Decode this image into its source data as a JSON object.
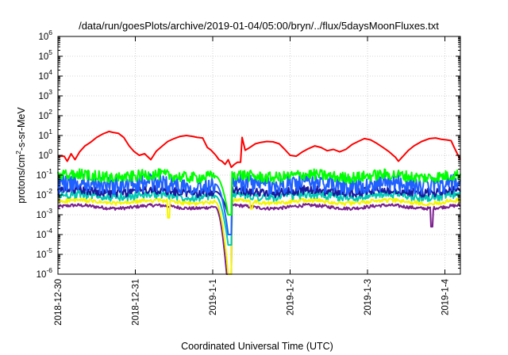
{
  "chart_data": {
    "type": "line",
    "title": "/data/run/goesPlots/archive/2019-01-04/05:00/bryn/../flux/5daysMoonFluxes.txt",
    "xlabel": "Coordinated Universal Time (UTC)",
    "ylabel": "protons/cm2-s-sr-MeV",
    "y_scale": "log",
    "ylim_exponents": [
      -6,
      6
    ],
    "xlim_days": [
      0,
      5.2
    ],
    "x_ticks": [
      {
        "day": 0,
        "label": "2018-12-30"
      },
      {
        "day": 1,
        "label": "2018-12-31"
      },
      {
        "day": 2,
        "label": "2019-1-1"
      },
      {
        "day": 3,
        "label": "2019-1-2"
      },
      {
        "day": 4,
        "label": "2019-1-3"
      },
      {
        "day": 5,
        "label": "2019-1-4"
      }
    ],
    "grid": true,
    "legend": "none",
    "series": [
      {
        "color": "#7a1f8c",
        "level": 0.0025,
        "amp": 0.08,
        "dip": 1e-07,
        "spikes": [
          [
            4.83,
            0.00025
          ]
        ]
      },
      {
        "color": "#f5f500",
        "level": 0.0045,
        "amp": 0.1,
        "dip": 1e-06,
        "spikes": [
          [
            1.43,
            0.0007
          ],
          [
            2.5,
            0.002
          ]
        ]
      },
      {
        "color": "#00c8b4",
        "level": 0.009,
        "amp": 0.2,
        "dip": 3e-05,
        "spikes": []
      },
      {
        "color": "#1a1a9e",
        "level": 0.015,
        "amp": 0.22,
        "dip": 0.001,
        "spikes": []
      },
      {
        "color": "#2060ff",
        "level": 0.035,
        "amp": 0.45,
        "dip": 0.0001,
        "spikes": []
      },
      {
        "color": "#00ff00",
        "level": 0.09,
        "amp": 0.28,
        "dip": 0.001,
        "spikes": []
      },
      {
        "color": "#ff0000",
        "kind": "moon",
        "points": [
          [
            0.0,
            0.9
          ],
          [
            0.08,
            0.9
          ],
          [
            0.12,
            0.5
          ],
          [
            0.17,
            1.2
          ],
          [
            0.22,
            0.6
          ],
          [
            0.28,
            1.5
          ],
          [
            0.35,
            3.0
          ],
          [
            0.42,
            4.5
          ],
          [
            0.5,
            8.0
          ],
          [
            0.58,
            12
          ],
          [
            0.66,
            16
          ],
          [
            0.72,
            14
          ],
          [
            0.78,
            13
          ],
          [
            0.85,
            8
          ],
          [
            0.92,
            3
          ],
          [
            0.98,
            1.6
          ],
          [
            1.05,
            1.0
          ],
          [
            1.12,
            1.2
          ],
          [
            1.2,
            0.6
          ],
          [
            1.27,
            1.6
          ],
          [
            1.35,
            3
          ],
          [
            1.42,
            5
          ],
          [
            1.5,
            7
          ],
          [
            1.58,
            9
          ],
          [
            1.66,
            10
          ],
          [
            1.74,
            9
          ],
          [
            1.8,
            8
          ],
          [
            1.87,
            7.5
          ],
          [
            1.93,
            2.5
          ],
          [
            1.98,
            1.8
          ],
          [
            2.04,
            1.0
          ],
          [
            2.08,
            0.6
          ],
          [
            2.12,
            0.5
          ],
          [
            2.16,
            0.35
          ],
          [
            2.2,
            0.6
          ],
          [
            2.24,
            0.25
          ],
          [
            2.28,
            0.35
          ],
          [
            2.32,
            0.45
          ],
          [
            2.36,
            0.45
          ],
          [
            2.38,
            8
          ],
          [
            2.42,
            1.8
          ],
          [
            2.48,
            2.5
          ],
          [
            2.55,
            3.8
          ],
          [
            2.62,
            4.5
          ],
          [
            2.7,
            5
          ],
          [
            2.78,
            4.8
          ],
          [
            2.86,
            3.8
          ],
          [
            2.93,
            2.0
          ],
          [
            3.0,
            1.0
          ],
          [
            3.08,
            0.9
          ],
          [
            3.16,
            1.5
          ],
          [
            3.24,
            2.2
          ],
          [
            3.32,
            3.0
          ],
          [
            3.4,
            2.5
          ],
          [
            3.48,
            1.7
          ],
          [
            3.56,
            2.0
          ],
          [
            3.64,
            1.5
          ],
          [
            3.72,
            2.0
          ],
          [
            3.8,
            3.5
          ],
          [
            3.88,
            5
          ],
          [
            3.96,
            7
          ],
          [
            4.04,
            6
          ],
          [
            4.12,
            4
          ],
          [
            4.2,
            2.5
          ],
          [
            4.28,
            1.5
          ],
          [
            4.36,
            0.8
          ],
          [
            4.4,
            0.5
          ],
          [
            4.46,
            0.9
          ],
          [
            4.53,
            1.8
          ],
          [
            4.6,
            3.0
          ],
          [
            4.7,
            5
          ],
          [
            4.8,
            7
          ],
          [
            4.88,
            7.5
          ],
          [
            4.95,
            6.5
          ],
          [
            5.02,
            6
          ],
          [
            5.08,
            5.5
          ],
          [
            5.12,
            2.5
          ],
          [
            5.16,
            1.2
          ],
          [
            5.2,
            0.6
          ]
        ]
      }
    ]
  }
}
